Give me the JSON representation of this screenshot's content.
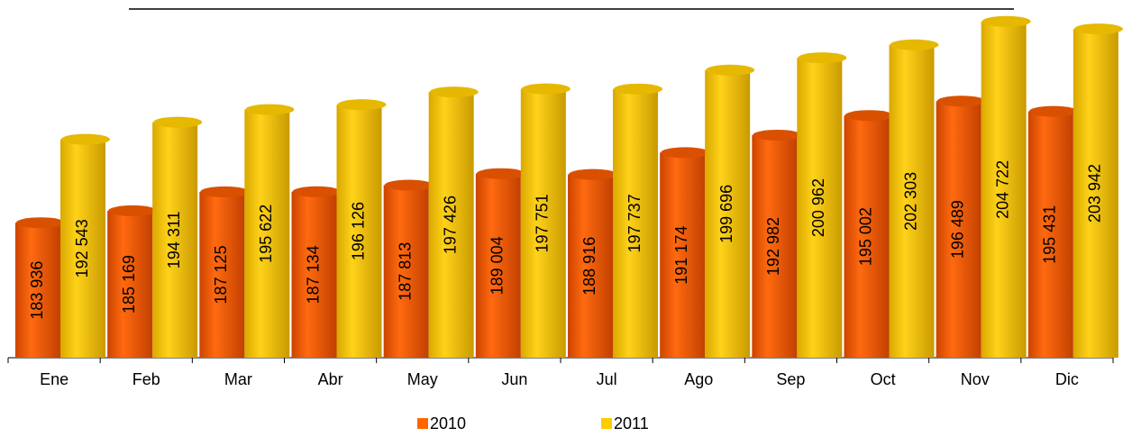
{
  "chart_data": {
    "type": "bar",
    "categories": [
      "Ene",
      "Feb",
      "Mar",
      "Abr",
      "May",
      "Jun",
      "Jul",
      "Ago",
      "Sep",
      "Oct",
      "Nov",
      "Dic"
    ],
    "series": [
      {
        "name": "2010",
        "color": "#ff6600",
        "values": [
          183936,
          185169,
          187125,
          187134,
          187813,
          189004,
          188916,
          191174,
          192982,
          195002,
          196489,
          195431
        ],
        "value_labels": [
          "183 936",
          "185 169",
          "187 125",
          "187 134",
          "187 813",
          "189 004",
          "188 916",
          "191 174",
          "192 982",
          "195 002",
          "196 489",
          "195 431"
        ]
      },
      {
        "name": "2011",
        "color": "#ffcc00",
        "values": [
          192543,
          194311,
          195622,
          196126,
          197426,
          197751,
          197737,
          199696,
          200962,
          202303,
          204722,
          203942
        ],
        "value_labels": [
          "192 543",
          "194 311",
          "195 622",
          "196 126",
          "197 426",
          "197 751",
          "197 737",
          "199 696",
          "200 962",
          "202 303",
          "204 722",
          "203 942"
        ]
      }
    ],
    "ylim": [
      170000,
      206000
    ],
    "legend": "bottom"
  }
}
